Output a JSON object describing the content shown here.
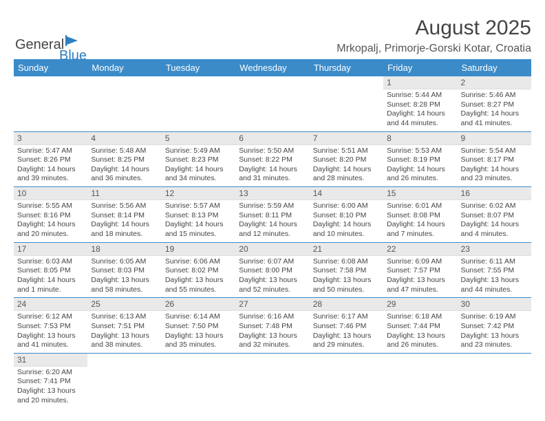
{
  "logo": {
    "text1": "General",
    "text2": "Blue"
  },
  "title": "August 2025",
  "location": "Mrkopalj, Primorje-Gorski Kotar, Croatia",
  "day_headers": [
    "Sunday",
    "Monday",
    "Tuesday",
    "Wednesday",
    "Thursday",
    "Friday",
    "Saturday"
  ],
  "colors": {
    "header_bg": "#3b8bc9",
    "header_fg": "#ffffff",
    "daynum_bg": "#e9e9e9",
    "row_border": "#3b8bc9",
    "text": "#444444"
  },
  "weeks": [
    [
      null,
      null,
      null,
      null,
      null,
      {
        "n": "1",
        "sunrise": "5:44 AM",
        "sunset": "8:28 PM",
        "daylight": "14 hours and 44 minutes."
      },
      {
        "n": "2",
        "sunrise": "5:46 AM",
        "sunset": "8:27 PM",
        "daylight": "14 hours and 41 minutes."
      }
    ],
    [
      {
        "n": "3",
        "sunrise": "5:47 AM",
        "sunset": "8:26 PM",
        "daylight": "14 hours and 39 minutes."
      },
      {
        "n": "4",
        "sunrise": "5:48 AM",
        "sunset": "8:25 PM",
        "daylight": "14 hours and 36 minutes."
      },
      {
        "n": "5",
        "sunrise": "5:49 AM",
        "sunset": "8:23 PM",
        "daylight": "14 hours and 34 minutes."
      },
      {
        "n": "6",
        "sunrise": "5:50 AM",
        "sunset": "8:22 PM",
        "daylight": "14 hours and 31 minutes."
      },
      {
        "n": "7",
        "sunrise": "5:51 AM",
        "sunset": "8:20 PM",
        "daylight": "14 hours and 28 minutes."
      },
      {
        "n": "8",
        "sunrise": "5:53 AM",
        "sunset": "8:19 PM",
        "daylight": "14 hours and 26 minutes."
      },
      {
        "n": "9",
        "sunrise": "5:54 AM",
        "sunset": "8:17 PM",
        "daylight": "14 hours and 23 minutes."
      }
    ],
    [
      {
        "n": "10",
        "sunrise": "5:55 AM",
        "sunset": "8:16 PM",
        "daylight": "14 hours and 20 minutes."
      },
      {
        "n": "11",
        "sunrise": "5:56 AM",
        "sunset": "8:14 PM",
        "daylight": "14 hours and 18 minutes."
      },
      {
        "n": "12",
        "sunrise": "5:57 AM",
        "sunset": "8:13 PM",
        "daylight": "14 hours and 15 minutes."
      },
      {
        "n": "13",
        "sunrise": "5:59 AM",
        "sunset": "8:11 PM",
        "daylight": "14 hours and 12 minutes."
      },
      {
        "n": "14",
        "sunrise": "6:00 AM",
        "sunset": "8:10 PM",
        "daylight": "14 hours and 10 minutes."
      },
      {
        "n": "15",
        "sunrise": "6:01 AM",
        "sunset": "8:08 PM",
        "daylight": "14 hours and 7 minutes."
      },
      {
        "n": "16",
        "sunrise": "6:02 AM",
        "sunset": "8:07 PM",
        "daylight": "14 hours and 4 minutes."
      }
    ],
    [
      {
        "n": "17",
        "sunrise": "6:03 AM",
        "sunset": "8:05 PM",
        "daylight": "14 hours and 1 minute."
      },
      {
        "n": "18",
        "sunrise": "6:05 AM",
        "sunset": "8:03 PM",
        "daylight": "13 hours and 58 minutes."
      },
      {
        "n": "19",
        "sunrise": "6:06 AM",
        "sunset": "8:02 PM",
        "daylight": "13 hours and 55 minutes."
      },
      {
        "n": "20",
        "sunrise": "6:07 AM",
        "sunset": "8:00 PM",
        "daylight": "13 hours and 52 minutes."
      },
      {
        "n": "21",
        "sunrise": "6:08 AM",
        "sunset": "7:58 PM",
        "daylight": "13 hours and 50 minutes."
      },
      {
        "n": "22",
        "sunrise": "6:09 AM",
        "sunset": "7:57 PM",
        "daylight": "13 hours and 47 minutes."
      },
      {
        "n": "23",
        "sunrise": "6:11 AM",
        "sunset": "7:55 PM",
        "daylight": "13 hours and 44 minutes."
      }
    ],
    [
      {
        "n": "24",
        "sunrise": "6:12 AM",
        "sunset": "7:53 PM",
        "daylight": "13 hours and 41 minutes."
      },
      {
        "n": "25",
        "sunrise": "6:13 AM",
        "sunset": "7:51 PM",
        "daylight": "13 hours and 38 minutes."
      },
      {
        "n": "26",
        "sunrise": "6:14 AM",
        "sunset": "7:50 PM",
        "daylight": "13 hours and 35 minutes."
      },
      {
        "n": "27",
        "sunrise": "6:16 AM",
        "sunset": "7:48 PM",
        "daylight": "13 hours and 32 minutes."
      },
      {
        "n": "28",
        "sunrise": "6:17 AM",
        "sunset": "7:46 PM",
        "daylight": "13 hours and 29 minutes."
      },
      {
        "n": "29",
        "sunrise": "6:18 AM",
        "sunset": "7:44 PM",
        "daylight": "13 hours and 26 minutes."
      },
      {
        "n": "30",
        "sunrise": "6:19 AM",
        "sunset": "7:42 PM",
        "daylight": "13 hours and 23 minutes."
      }
    ],
    [
      {
        "n": "31",
        "sunrise": "6:20 AM",
        "sunset": "7:41 PM",
        "daylight": "13 hours and 20 minutes."
      },
      null,
      null,
      null,
      null,
      null,
      null
    ]
  ],
  "labels": {
    "sunrise": "Sunrise:",
    "sunset": "Sunset:",
    "daylight": "Daylight:"
  }
}
